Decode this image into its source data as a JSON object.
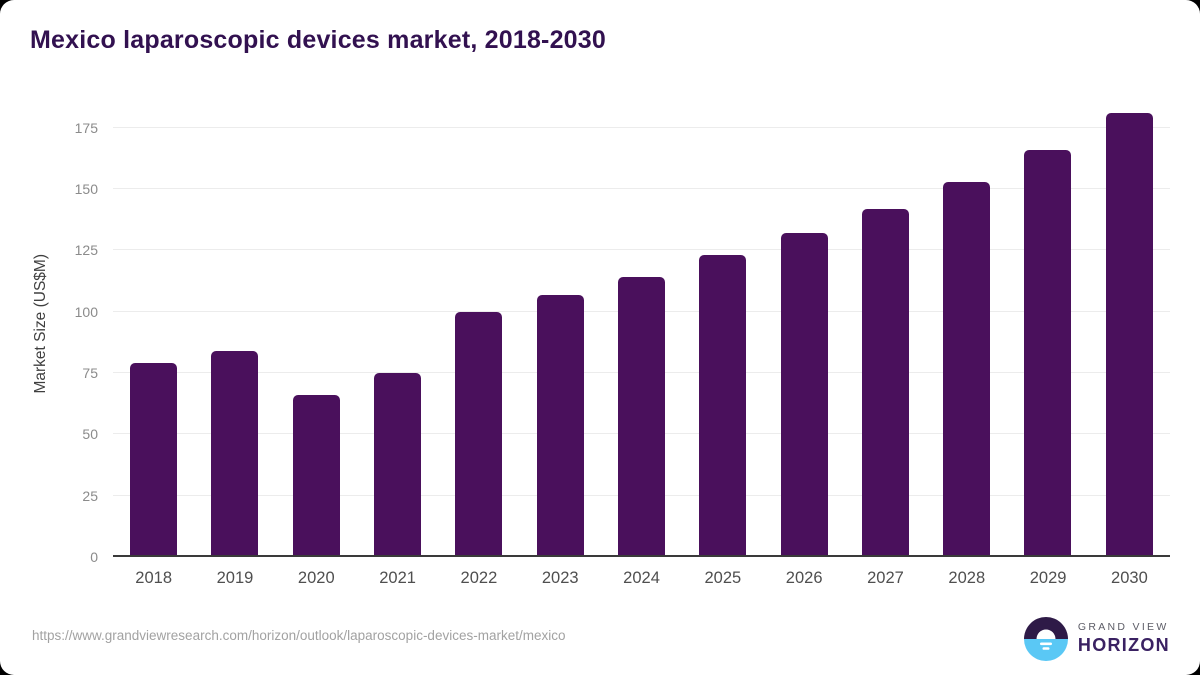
{
  "chart_data": {
    "type": "bar",
    "title": "Mexico laparoscopic devices market, 2018-2030",
    "categories": [
      "2018",
      "2019",
      "2020",
      "2021",
      "2022",
      "2023",
      "2024",
      "2025",
      "2026",
      "2027",
      "2028",
      "2029",
      "2030"
    ],
    "values": [
      79,
      84,
      66,
      75,
      100,
      107,
      114,
      123,
      132,
      142,
      153,
      166,
      181
    ],
    "xlabel": "",
    "ylabel": "Market Size (US$M)",
    "yticks": [
      0,
      25,
      50,
      75,
      100,
      125,
      150,
      175
    ],
    "ylim": [
      0,
      190
    ],
    "grid": "horizontal-light",
    "legend": "none",
    "bar_color": "#4a105c",
    "title_color": "#321150"
  },
  "footer": {
    "source_url": "https://www.grandviewresearch.com/horizon/outlook/laparoscopic-devices-market/mexico",
    "logo": {
      "top_text": "GRAND VIEW",
      "bottom_text": "HORIZON",
      "icon": "sunrise-horizon-icon",
      "icon_purple": "#2e1a47",
      "icon_blue": "#5ac8f5"
    }
  }
}
